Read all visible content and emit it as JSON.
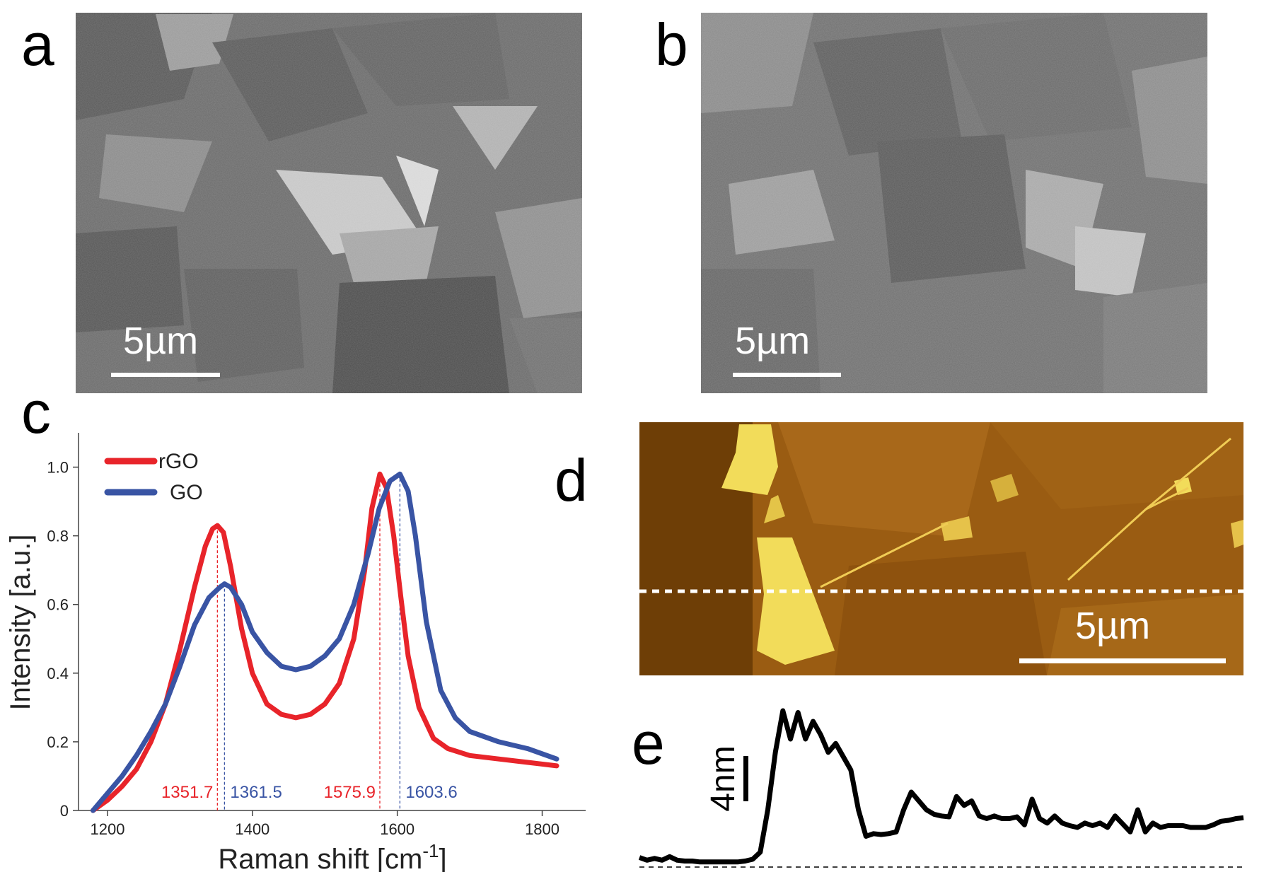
{
  "panels": {
    "a": {
      "letter": "a",
      "scale_bar": "5µm"
    },
    "b": {
      "letter": "b",
      "scale_bar": "5µm"
    },
    "c": {
      "letter": "c"
    },
    "d": {
      "letter": "d",
      "scale_bar": "5µm"
    },
    "e": {
      "letter": "e",
      "scale_label": "4nm"
    }
  },
  "colors": {
    "rGO": "#e8242a",
    "GO": "#3954a4",
    "afm_dark": "#6e3e06",
    "afm_light": "#f2dc5a"
  },
  "chart_data": {
    "type": "line",
    "xlabel": "Raman shift [cm",
    "xlabel_sup": "-1",
    "xlabel_end": "]",
    "ylabel": "Intensity [a.u.]",
    "xlim": [
      1160,
      1860
    ],
    "ylim": [
      0,
      1.1
    ],
    "xticks": [
      1200,
      1400,
      1600,
      1800
    ],
    "yticks": [
      0,
      0.2,
      0.4,
      0.6,
      0.8,
      1.0
    ],
    "ytick_labels": [
      "0",
      "0.2",
      "0.4",
      "0.6",
      "0.8",
      "1.0"
    ],
    "legend": [
      "rGO",
      "GO"
    ],
    "legend_position": "top-left",
    "series": [
      {
        "name": "rGO",
        "color": "#e8242a",
        "x": [
          1180,
          1200,
          1220,
          1240,
          1260,
          1280,
          1300,
          1320,
          1335,
          1345,
          1351.7,
          1360,
          1370,
          1385,
          1400,
          1420,
          1440,
          1460,
          1480,
          1500,
          1520,
          1540,
          1555,
          1565,
          1575.9,
          1585,
          1595,
          1605,
          1615,
          1630,
          1650,
          1670,
          1700,
          1740,
          1780,
          1820
        ],
        "y": [
          0.0,
          0.03,
          0.07,
          0.12,
          0.2,
          0.31,
          0.47,
          0.65,
          0.77,
          0.82,
          0.83,
          0.81,
          0.71,
          0.53,
          0.4,
          0.31,
          0.28,
          0.27,
          0.28,
          0.31,
          0.37,
          0.5,
          0.7,
          0.88,
          0.98,
          0.94,
          0.8,
          0.62,
          0.45,
          0.3,
          0.21,
          0.18,
          0.16,
          0.15,
          0.14,
          0.13
        ]
      },
      {
        "name": "GO",
        "color": "#3954a4",
        "x": [
          1180,
          1200,
          1220,
          1240,
          1260,
          1280,
          1300,
          1320,
          1340,
          1355,
          1361.5,
          1370,
          1385,
          1400,
          1420,
          1440,
          1460,
          1480,
          1500,
          1520,
          1540,
          1560,
          1575,
          1590,
          1603.6,
          1615,
          1625,
          1640,
          1660,
          1680,
          1700,
          1740,
          1780,
          1820
        ],
        "y": [
          0.0,
          0.05,
          0.1,
          0.16,
          0.23,
          0.31,
          0.42,
          0.54,
          0.62,
          0.65,
          0.66,
          0.65,
          0.6,
          0.52,
          0.46,
          0.42,
          0.41,
          0.42,
          0.45,
          0.5,
          0.6,
          0.75,
          0.88,
          0.96,
          0.98,
          0.93,
          0.8,
          0.55,
          0.35,
          0.27,
          0.23,
          0.2,
          0.18,
          0.15
        ]
      }
    ],
    "peaks": [
      {
        "series": "rGO",
        "x": 1351.7,
        "y": 0.83,
        "label": "1351.7"
      },
      {
        "series": "GO",
        "x": 1361.5,
        "y": 0.66,
        "label": "1361.5"
      },
      {
        "series": "rGO",
        "x": 1575.9,
        "y": 0.98,
        "label": "1575.9"
      },
      {
        "series": "GO",
        "x": 1603.6,
        "y": 0.98,
        "label": "1603.6"
      }
    ]
  },
  "profile_e": {
    "type": "line",
    "x": [
      0,
      1,
      2,
      3,
      4,
      5,
      6,
      7,
      8,
      9,
      10,
      11,
      12,
      13,
      14,
      15,
      16,
      17,
      18,
      19,
      20,
      21,
      22,
      23,
      24,
      25,
      26,
      27,
      28,
      29,
      30,
      31,
      32,
      33,
      34,
      35,
      36,
      37,
      38,
      39,
      40,
      41,
      42,
      43,
      44,
      45,
      46,
      47,
      48,
      49,
      50,
      51,
      52,
      53,
      54,
      55,
      56,
      57,
      58,
      59,
      60,
      61,
      62,
      63,
      64,
      65,
      66,
      67,
      68,
      69,
      70,
      71,
      72,
      73,
      74,
      75,
      76,
      77,
      78,
      79,
      80
    ],
    "y": [
      0.6,
      0.3,
      0.5,
      0.3,
      0.7,
      0.3,
      0.2,
      0.2,
      0.1,
      0.1,
      0.1,
      0.1,
      0.1,
      0.1,
      0.2,
      0.4,
      1.2,
      6.0,
      12.5,
      17.2,
      14.0,
      17.0,
      14.0,
      16.0,
      14.5,
      12.5,
      13.5,
      12.0,
      10.5,
      6.0,
      3.0,
      3.3,
      3.2,
      3.3,
      3.5,
      6.0,
      8.0,
      7.0,
      6.0,
      5.5,
      5.3,
      5.2,
      7.5,
      6.5,
      7.0,
      5.3,
      5.0,
      5.3,
      5.0,
      5.0,
      5.2,
      4.3,
      7.2,
      5.0,
      4.5,
      5.3,
      4.5,
      4.2,
      4.0,
      4.5,
      4.2,
      4.5,
      4.0,
      5.3,
      4.4,
      3.5,
      6.0,
      3.5,
      4.5,
      4.0,
      4.2,
      4.2,
      4.2,
      4.0,
      4.0,
      4.0,
      4.3,
      4.7,
      4.8,
      5.0,
      5.1
    ],
    "ylim": [
      0,
      18
    ]
  }
}
